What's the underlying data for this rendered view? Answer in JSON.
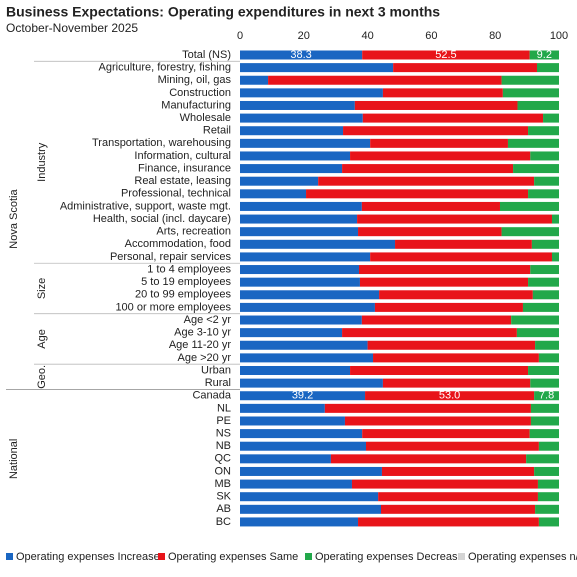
{
  "chart_data": {
    "type": "stacked-bar-horizontal",
    "title": "Business Expectations: Operating expenditures in next 3 months",
    "subtitle": "October-November 2025",
    "groups": [
      {
        "name": "Nova Scotia",
        "subgroups": [
          {
            "name": null,
            "categories": [
              "Total (NS)"
            ]
          },
          {
            "name": "Industry",
            "categories": [
              "Agriculture, forestry, fishing",
              "Mining, oil, gas",
              "Construction",
              "Manufacturing",
              "Wholesale",
              "Retail",
              "Transportation, warehousing",
              "Information, cultural",
              "Finance, insurance",
              "Real estate, leasing",
              "Professional, technical",
              "Administrative, support, waste mgt.",
              "Health, social (incl. daycare)",
              "Arts, recreation",
              "Accommodation, food",
              "Personal, repair services"
            ]
          },
          {
            "name": "Size",
            "categories": [
              "1 to 4 employees",
              "5 to 19 employees",
              "20 to 99 employees",
              "100 or more employees"
            ]
          },
          {
            "name": "Age",
            "categories": [
              "Age <2 yr",
              "Age 3-10 yr",
              "Age 11-20 yr",
              "Age >20 yr"
            ]
          },
          {
            "name": "Geo.",
            "categories": [
              "Urban",
              "Rural"
            ]
          }
        ]
      },
      {
        "name": "National",
        "subgroups": [
          {
            "name": null,
            "categories": [
              "Canada",
              "NL",
              "PE",
              "NS",
              "NB",
              "QC",
              "ON",
              "MB",
              "SK",
              "AB",
              "BC"
            ]
          }
        ]
      }
    ],
    "series": [
      {
        "name": "Operating expenses Increase",
        "color": "#1a66c2",
        "values": [
          38.3,
          48,
          8.8,
          44.8,
          36,
          38.5,
          32.3,
          40.8,
          34.5,
          32,
          24.5,
          20.7,
          38.2,
          36.7,
          37,
          48.6,
          40.8,
          37.3,
          37.6,
          43.6,
          42.3,
          38.2,
          32,
          40,
          41.7,
          34.5,
          44.8,
          39.2,
          26.6,
          32.9,
          38.3,
          39.5,
          28.5,
          44.5,
          35.1,
          43.3,
          44.2,
          37
        ],
        "value_labels": [
          "38.3",
          null,
          null,
          null,
          null,
          null,
          null,
          null,
          null,
          null,
          null,
          null,
          null,
          null,
          null,
          null,
          null,
          null,
          null,
          null,
          null,
          null,
          null,
          null,
          null,
          null,
          null,
          "39.2",
          null,
          null,
          null,
          null,
          null,
          null,
          null,
          null,
          null,
          null
        ]
      },
      {
        "name": "Operating expenses Same",
        "color": "#e8141a",
        "values": [
          52.5,
          45.1,
          73.2,
          37.6,
          51,
          56.5,
          58,
          43.2,
          56.5,
          53.6,
          67.7,
          69.6,
          43.3,
          61.1,
          45,
          42.9,
          57,
          53.7,
          52.7,
          48.2,
          46.4,
          46.8,
          54.8,
          52.5,
          52,
          55.8,
          46.2,
          53.0,
          64.6,
          58.3,
          52.5,
          54.2,
          61.2,
          47.7,
          58.3,
          50.1,
          48.3,
          56.7
        ],
        "value_labels": [
          "52.5",
          null,
          null,
          null,
          null,
          null,
          null,
          null,
          null,
          null,
          null,
          null,
          null,
          null,
          null,
          null,
          null,
          null,
          null,
          null,
          null,
          null,
          null,
          null,
          null,
          null,
          null,
          "53.0",
          null,
          null,
          null,
          null,
          null,
          null,
          null,
          null,
          null,
          null
        ]
      },
      {
        "name": "Operating expenses Decrease",
        "color": "#22a84a",
        "values": [
          9.2,
          6.9,
          18,
          17.6,
          13,
          5,
          9.7,
          16,
          9,
          14.4,
          7.8,
          9.7,
          18.5,
          2.2,
          18,
          8.5,
          2.2,
          9,
          9.7,
          8.2,
          11.3,
          15,
          13.2,
          7.5,
          6.3,
          9.7,
          9,
          7.8,
          8.8,
          8.8,
          9.2,
          6.3,
          10.3,
          7.8,
          6.6,
          6.6,
          7.5,
          6.3
        ],
        "value_labels": [
          "9.2",
          null,
          null,
          null,
          null,
          null,
          null,
          null,
          null,
          null,
          null,
          null,
          null,
          null,
          null,
          null,
          null,
          null,
          null,
          null,
          null,
          null,
          null,
          null,
          null,
          null,
          null,
          "7.8",
          null,
          null,
          null,
          null,
          null,
          null,
          null,
          null,
          null,
          null
        ]
      },
      {
        "name": "Operating expenses n/a",
        "color": "#d4d4d4",
        "values": [
          0,
          0,
          0,
          0,
          0,
          0,
          0,
          0,
          0,
          0,
          0,
          0,
          0,
          0,
          0,
          0,
          0,
          0,
          0,
          0,
          0,
          0,
          0,
          0,
          0,
          0,
          0,
          0,
          0,
          0,
          0,
          0,
          0,
          0,
          0,
          0,
          0,
          0
        ]
      }
    ],
    "xlim": [
      0,
      100
    ],
    "xticks": [
      0,
      20,
      40,
      60,
      80,
      100
    ],
    "grid": false,
    "legend": "bottom"
  }
}
